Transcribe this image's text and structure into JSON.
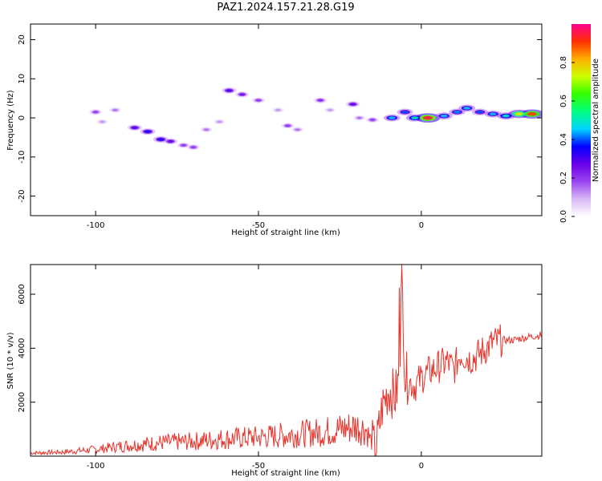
{
  "title": "PAZ1.2024.157.21.28.G19",
  "chart_data": [
    {
      "type": "heatmap",
      "description_of_marks": "spectrogram of normalized spectral amplitude versus height and frequency",
      "xlabel": "Height of straight line (km)",
      "ylabel": "Frequency (Hz)",
      "xlim": [
        -120,
        37
      ],
      "ylim": [
        -25,
        24
      ],
      "xticks": [
        -100,
        -50,
        0
      ],
      "yticks": [
        -20,
        -10,
        0,
        10,
        20
      ],
      "colorbar": {
        "label": "Normalized spectral amplitude",
        "range": [
          0,
          1
        ],
        "ticks": [
          0.0,
          0.2,
          0.4,
          0.6,
          0.8
        ],
        "colormap": [
          "#ffffff",
          "#d8b8f5",
          "#9a45ef",
          "#6a00e8",
          "#0000ff",
          "#00d4ff",
          "#00ff80",
          "#33ff00",
          "#ccff00",
          "#ffb000",
          "#ff3000",
          "#ff0090"
        ]
      },
      "blobs": [
        {
          "x": -100,
          "y": 1.5,
          "v": 0.2
        },
        {
          "x": -98,
          "y": -1,
          "v": 0.12
        },
        {
          "x": -94,
          "y": 2,
          "v": 0.15
        },
        {
          "x": -88,
          "y": -2.5,
          "v": 0.3
        },
        {
          "x": -84,
          "y": -3.5,
          "v": 0.35
        },
        {
          "x": -80,
          "y": -5.5,
          "v": 0.35
        },
        {
          "x": -77,
          "y": -6,
          "v": 0.28
        },
        {
          "x": -73,
          "y": -7,
          "v": 0.2
        },
        {
          "x": -70,
          "y": -7.5,
          "v": 0.2
        },
        {
          "x": -66,
          "y": -3,
          "v": 0.15
        },
        {
          "x": -62,
          "y": -1,
          "v": 0.12
        },
        {
          "x": -59,
          "y": 7,
          "v": 0.3
        },
        {
          "x": -55,
          "y": 6,
          "v": 0.25
        },
        {
          "x": -50,
          "y": 4.5,
          "v": 0.2
        },
        {
          "x": -44,
          "y": 2,
          "v": 0.12
        },
        {
          "x": -41,
          "y": -2,
          "v": 0.2
        },
        {
          "x": -38,
          "y": -3,
          "v": 0.15
        },
        {
          "x": -31,
          "y": 4.5,
          "v": 0.22
        },
        {
          "x": -28,
          "y": 2,
          "v": 0.12
        },
        {
          "x": -21,
          "y": 3.5,
          "v": 0.28
        },
        {
          "x": -19,
          "y": 0,
          "v": 0.15
        },
        {
          "x": -15,
          "y": -0.5,
          "v": 0.2
        },
        {
          "x": -9,
          "y": 0,
          "v": 0.45
        },
        {
          "x": -5,
          "y": 1.5,
          "v": 0.4
        },
        {
          "x": -2,
          "y": 0,
          "v": 0.5
        },
        {
          "x": 2,
          "y": 0,
          "v": 0.95
        },
        {
          "x": 7,
          "y": 0.5,
          "v": 0.45
        },
        {
          "x": 11,
          "y": 1.5,
          "v": 0.42
        },
        {
          "x": 14,
          "y": 2.5,
          "v": 0.45
        },
        {
          "x": 18,
          "y": 1.5,
          "v": 0.4
        },
        {
          "x": 22,
          "y": 1,
          "v": 0.45
        },
        {
          "x": 26,
          "y": 0.5,
          "v": 0.5
        },
        {
          "x": 30,
          "y": 1,
          "v": 0.75
        },
        {
          "x": 34,
          "y": 1,
          "v": 0.9
        }
      ]
    },
    {
      "type": "line",
      "xlabel": "Height of straight line (km)",
      "ylabel": "SNR (10 * v/v)",
      "xlim": [
        -120,
        37
      ],
      "ylim": [
        0,
        7100
      ],
      "xticks": [
        -100,
        -50,
        0
      ],
      "yticks": [
        2000,
        4000,
        6000
      ],
      "color": "#e8322b",
      "series": [
        {
          "x": [
            -120,
            -110,
            -100,
            -90,
            -80,
            -70,
            -60,
            -50,
            -40,
            -30,
            -25,
            -20,
            -17,
            -14,
            -12,
            -10,
            -8,
            -6.5,
            -6,
            -5,
            -4,
            -2,
            0,
            2,
            5,
            8,
            10,
            12,
            15,
            17,
            20,
            22,
            25,
            28,
            32,
            35,
            37
          ],
          "y": [
            120,
            150,
            250,
            400,
            500,
            550,
            650,
            700,
            800,
            900,
            1000,
            1100,
            1000,
            150,
            1800,
            2500,
            2200,
            3000,
            6900,
            3000,
            2800,
            2600,
            2900,
            3100,
            3300,
            3500,
            3200,
            3800,
            3600,
            3700,
            4000,
            4200,
            4300,
            4300,
            4400,
            4450,
            4500
          ]
        }
      ],
      "grid": false
    }
  ]
}
